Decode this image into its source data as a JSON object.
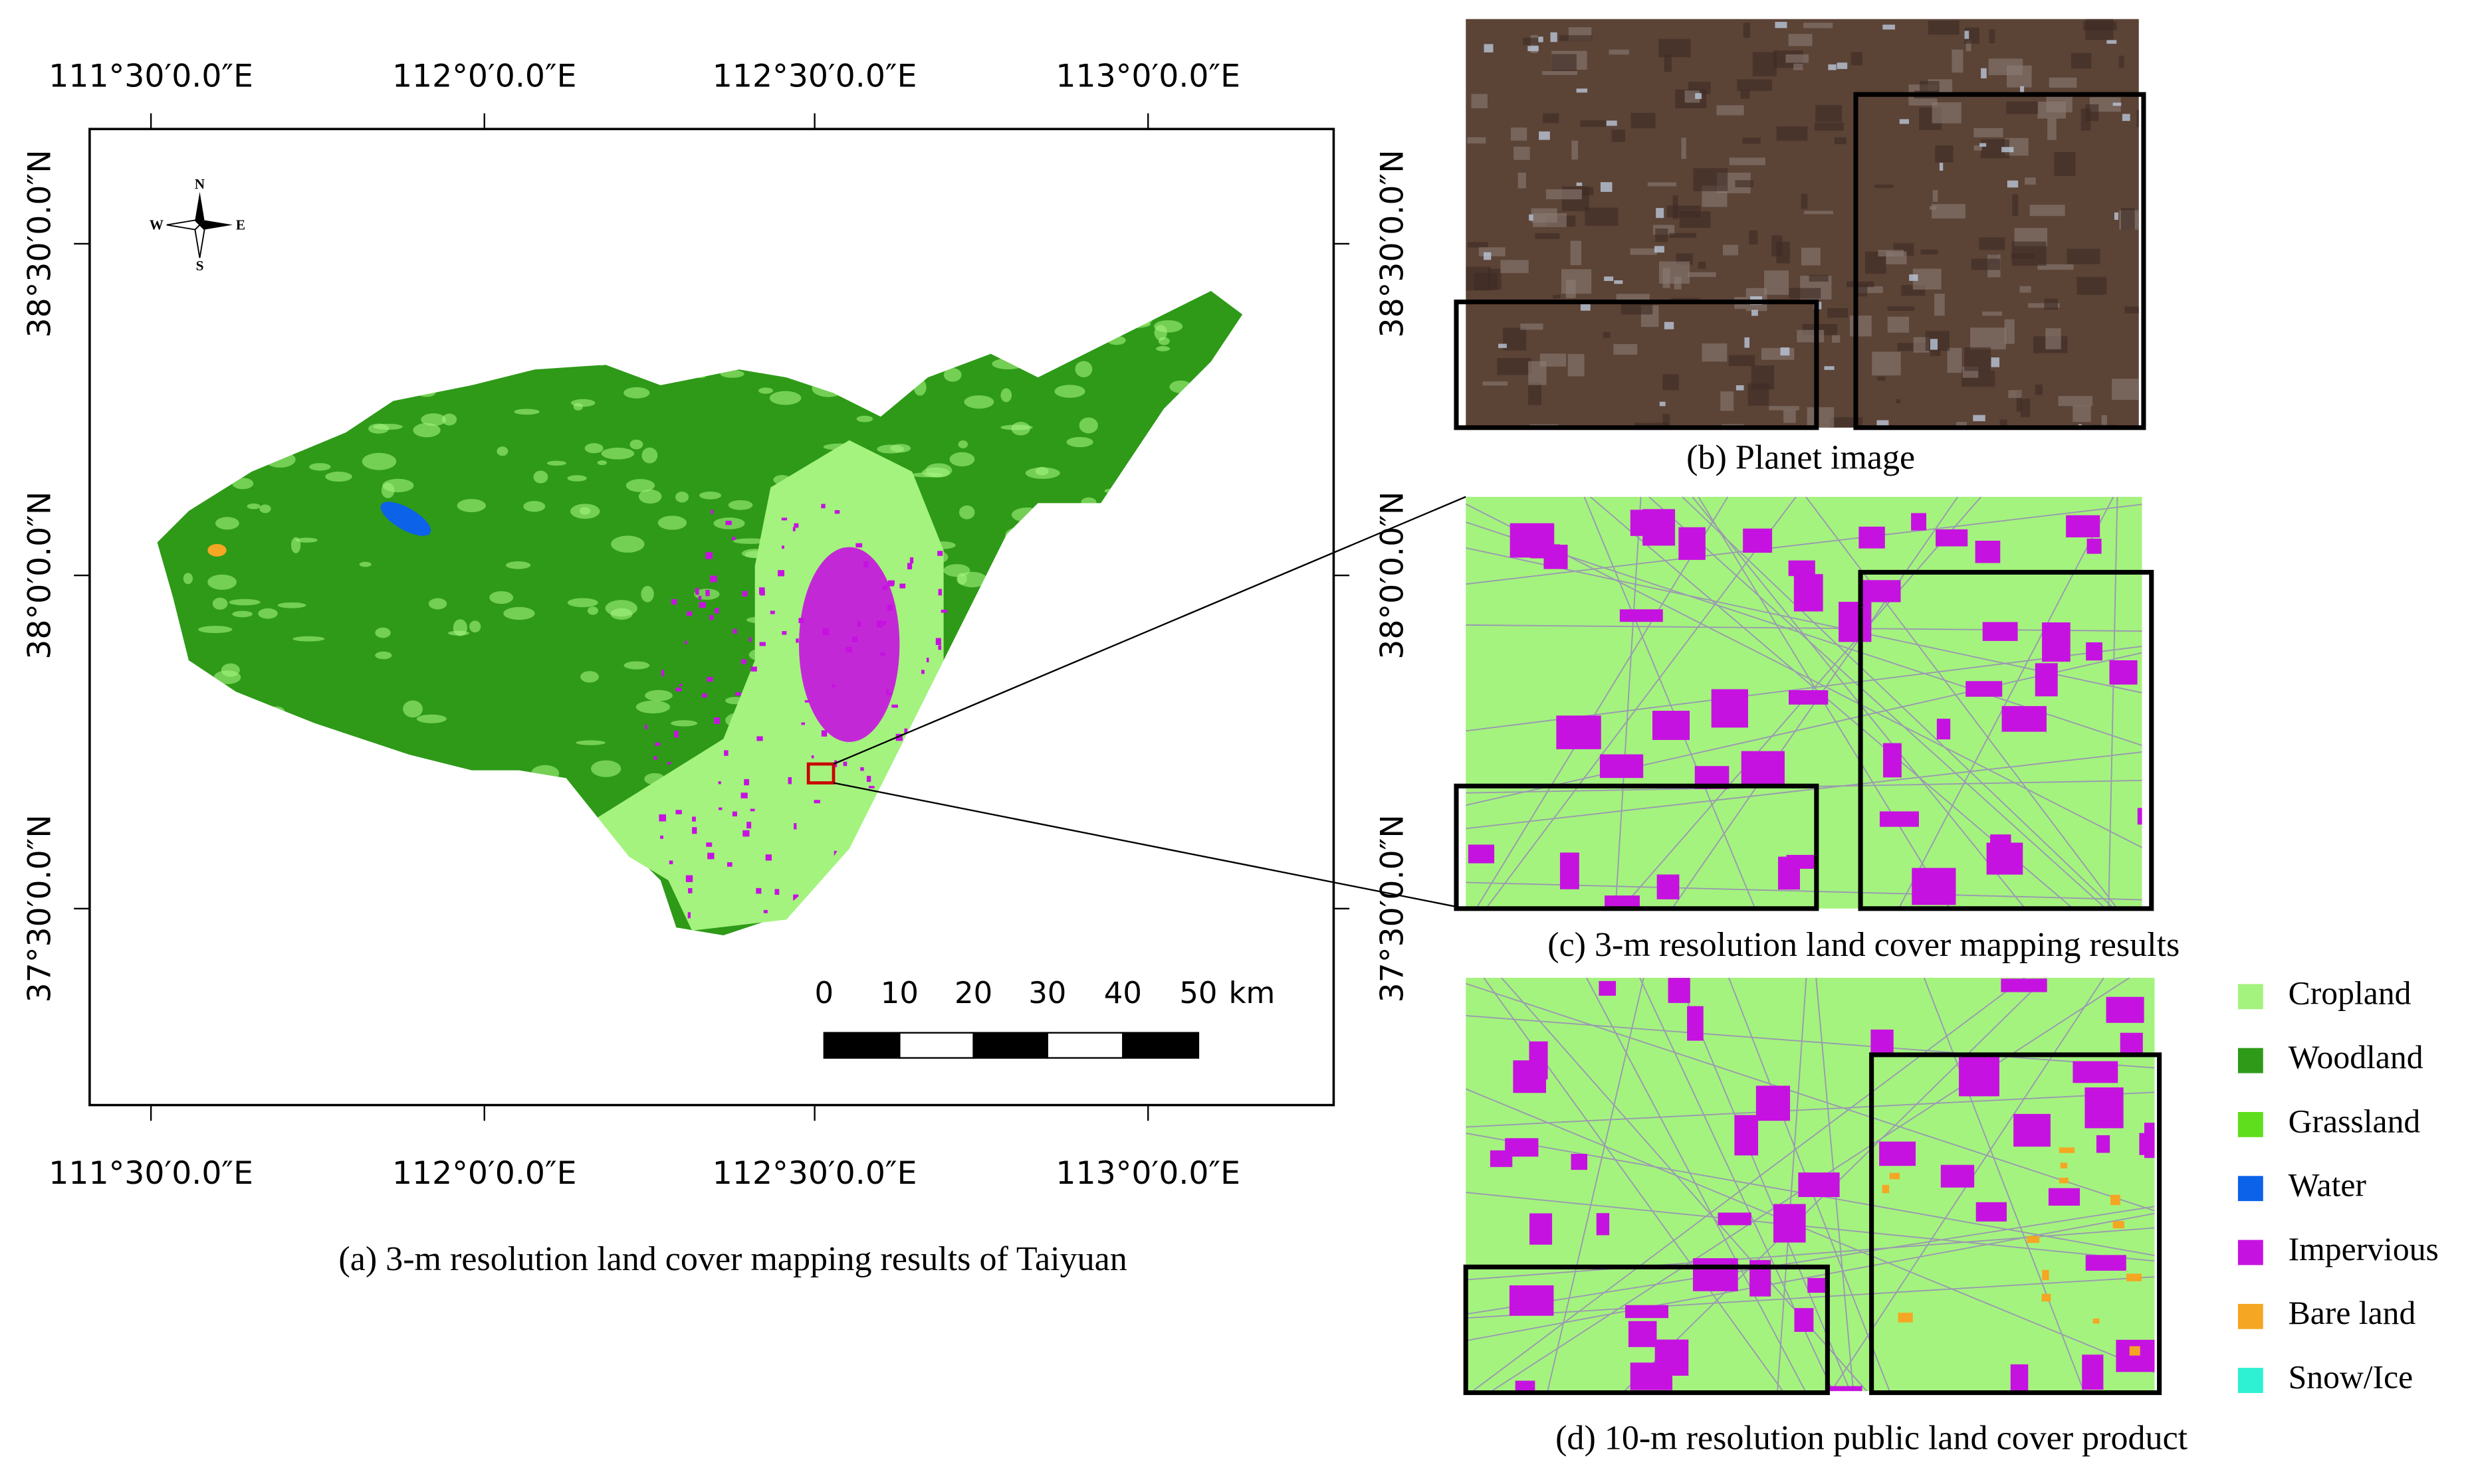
{
  "axes": {
    "top_labels": [
      "111°30′0.0″E",
      "112°0′0.0″E",
      "112°30′0.0″E",
      "113°0′0.0″E"
    ],
    "bottom_labels": [
      "111°30′0.0″E",
      "112°0′0.0″E",
      "112°30′0.0″E",
      "113°0′0.0″E"
    ],
    "left_labels": [
      "38°30′0.0″N",
      "38°0′0.0″N",
      "37°30′0.0″N"
    ],
    "right_labels": [
      "38°30′0.0″N",
      "38°0′0.0″N",
      "37°30′0.0″N"
    ]
  },
  "compass": {
    "north": "N",
    "east": "E",
    "south": "S",
    "west": "W"
  },
  "scale_bar": {
    "labels": [
      "0",
      "10",
      "20",
      "30",
      "40",
      "50"
    ],
    "unit": "km"
  },
  "panels": [
    {
      "caption": "(a) 3-m resolution land cover mapping results of Taiyuan"
    },
    {
      "caption": "(b) Planet image"
    },
    {
      "caption": "(c) 3-m resolution land cover mapping results"
    },
    {
      "caption": "(d) 10-m resolution public land cover product"
    }
  ],
  "legend": [
    {
      "label": "Cropland",
      "color": "#a4f37e"
    },
    {
      "label": "Woodland",
      "color": "#2e9a18"
    },
    {
      "label": "Grassland",
      "color": "#5ede1c"
    },
    {
      "label": "Water",
      "color": "#0c62e8"
    },
    {
      "label": "Impervious",
      "color": "#c612e0"
    },
    {
      "label": "Bare land",
      "color": "#f5a623"
    },
    {
      "label": "Snow/Ice",
      "color": "#2ef0d2"
    }
  ]
}
